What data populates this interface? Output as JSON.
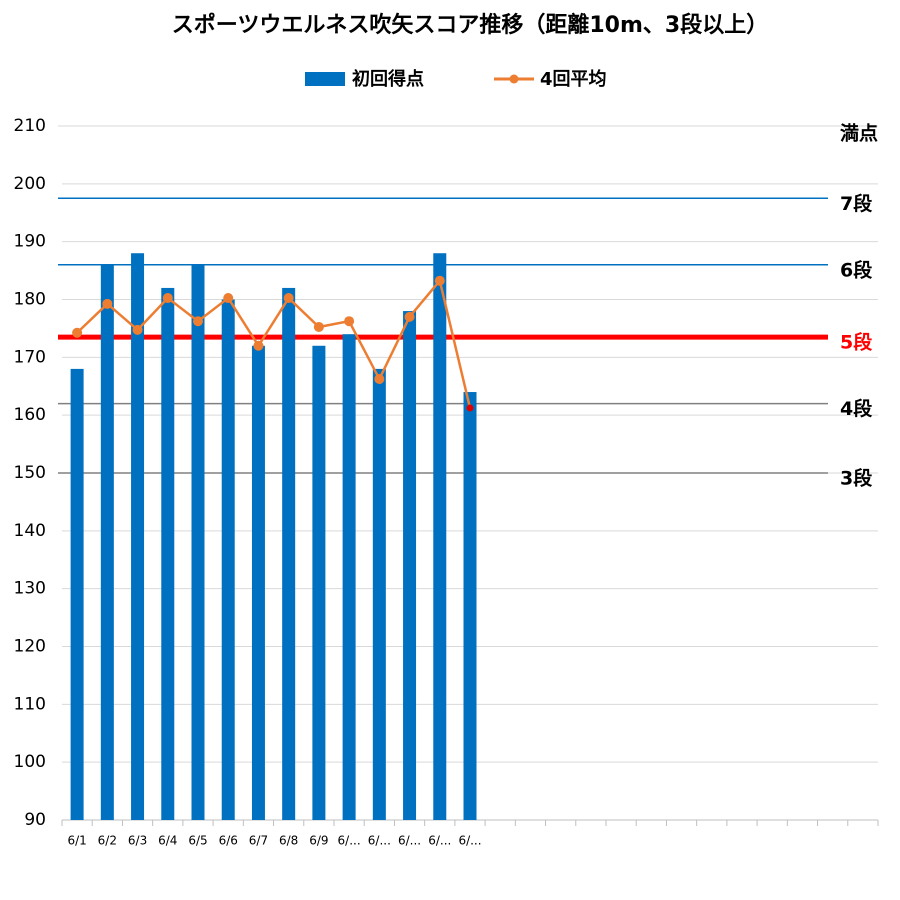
{
  "chart_data": {
    "type": "bar_line",
    "title": "スポーツウエルネス吹矢スコア推移（距離10m、3段以上）",
    "categories": [
      "6/1",
      "6/2",
      "6/3",
      "6/4",
      "6/5",
      "6/6",
      "6/7",
      "6/8",
      "6/9",
      "6/...",
      "6/...",
      "6/...",
      "6/...",
      "6/...",
      null,
      null,
      null,
      null,
      null,
      null,
      null,
      null,
      null,
      null,
      null,
      null,
      null
    ],
    "series": [
      {
        "name": "初回得点",
        "type": "bar",
        "color": "#0070c0",
        "values": [
          168,
          186,
          188,
          182,
          186,
          180,
          172,
          182,
          172,
          174,
          168,
          178,
          188,
          164,
          null,
          null,
          null,
          null,
          null,
          null,
          null,
          null,
          null,
          null,
          null,
          null,
          null
        ]
      },
      {
        "name": "4回平均",
        "type": "line",
        "color": "#ed7d31",
        "last_point_color": "#e00000",
        "values": [
          174.25,
          179.25,
          174.75,
          180.25,
          176.25,
          180.25,
          172,
          180.25,
          175.25,
          176.25,
          166.25,
          177,
          183.25,
          161.25,
          null,
          null,
          null,
          null,
          null,
          null,
          null,
          null,
          null,
          null,
          null,
          null,
          null
        ]
      }
    ],
    "ylim": [
      90,
      210
    ],
    "yticks": [
      90,
      100,
      110,
      120,
      130,
      140,
      150,
      160,
      170,
      180,
      190,
      200,
      210
    ],
    "grid": true,
    "legend": "top",
    "reference_lines": [
      {
        "label": "満点",
        "value": 210,
        "color": "#d9d9d9",
        "label_color": "#000000",
        "width": 1
      },
      {
        "label": "7段",
        "value": 197.5,
        "color": "#0070c0",
        "label_color": "#000000",
        "width": 1.5
      },
      {
        "label": "6段",
        "value": 186,
        "color": "#0070c0",
        "label_color": "#000000",
        "width": 1.5
      },
      {
        "label": "5段",
        "value": 173.5,
        "color": "#ff0000",
        "label_color": "#ff0000",
        "width": 5
      },
      {
        "label": "4段",
        "value": 162,
        "color": "#808080",
        "label_color": "#000000",
        "width": 1.5
      },
      {
        "label": "3段",
        "value": 150,
        "color": "#808080",
        "label_color": "#000000",
        "width": 1.5
      }
    ]
  }
}
